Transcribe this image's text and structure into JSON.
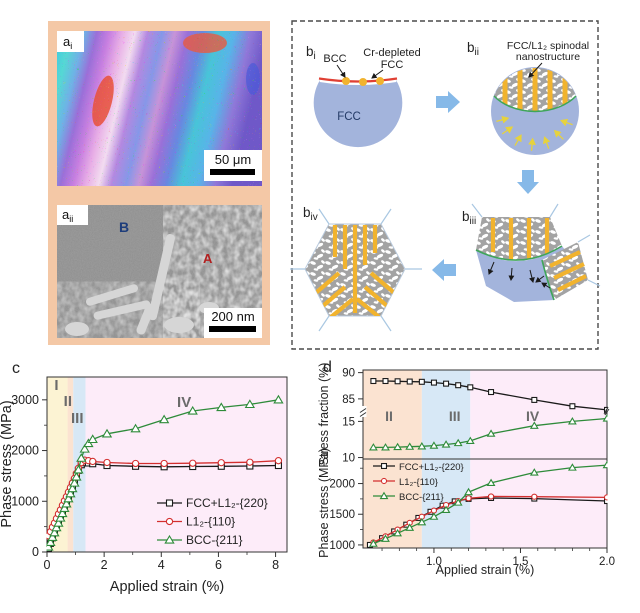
{
  "figure": {
    "panel_a": {
      "frame_color": "#f4c8a6",
      "ai": {
        "label_base": "a",
        "label_sub": "i",
        "scale_label": "50 μm"
      },
      "aii": {
        "label_base": "a",
        "label_sub": "ii",
        "scale_label": "200 nm",
        "marker_b": "B",
        "marker_a": "A",
        "marker_b_color": "#1e3d7b",
        "marker_a_color": "#b22020"
      }
    },
    "panel_b": {
      "bi": {
        "label_base": "b",
        "label_sub": "i",
        "bcc": "BCC",
        "cr_line1": "Cr-depleted",
        "cr_line2": "FCC",
        "fcc": "FCC"
      },
      "bii": {
        "label_base": "b",
        "label_sub": "ii",
        "ann_line1": "FCC/L1₂ spinodal",
        "ann_line2": "nanostructure"
      },
      "biii": {
        "label_base": "b",
        "label_sub": "iii"
      },
      "biv": {
        "label_base": "b",
        "label_sub": "iv"
      },
      "colors": {
        "matrix_blue": "#a3b4dc",
        "bar_yellow": "#f1b32e",
        "interface_green": "#3fa55a",
        "texture_gray": "#a3a3a3",
        "flow_arrow_blue": "#86b9e8",
        "surface_red": "#e04034"
      }
    }
  },
  "chart_data": [
    {
      "id": "c",
      "type": "line",
      "panel_label": "c",
      "xlabel": "Applied strain (%)",
      "ylabel": "Phase stress (MPa)",
      "xlim": [
        0,
        8.4
      ],
      "ylim": [
        0,
        3450
      ],
      "xticks": [
        0,
        2,
        4,
        6,
        8
      ],
      "xtick_labels": [
        "0",
        "2",
        "4",
        "6",
        "8"
      ],
      "yticks": [
        0,
        1000,
        2000,
        3000
      ],
      "ytick_labels": [
        "0",
        "1000",
        "2000",
        "3000"
      ],
      "grid": false,
      "legend": true,
      "legend_position": "inside-right-bottom",
      "regions": [
        {
          "label": "I",
          "from": 0,
          "to": 0.72,
          "color": "#fcf3d3",
          "label_x": 0.33,
          "label_y": 35
        },
        {
          "label": "II",
          "from": 0.72,
          "to": 0.92,
          "color": "#fbe3d1",
          "label_x": 0.73,
          "label_y": 51
        },
        {
          "label": "III",
          "from": 0.92,
          "to": 1.35,
          "color": "#d7e8f6",
          "label_x": 1.06,
          "label_y": 68
        },
        {
          "label": "IV",
          "from": 1.35,
          "to": 8.4,
          "color": "#fdecf9",
          "label_x": 4.8,
          "label_y": 52
        }
      ],
      "series": [
        {
          "name": "FCC+L1₂-{220}",
          "color": "#1a1a1a",
          "marker": "square",
          "x": [
            0.05,
            0.12,
            0.19,
            0.26,
            0.33,
            0.4,
            0.47,
            0.54,
            0.61,
            0.68,
            0.75,
            0.82,
            0.89,
            0.96,
            1.03,
            1.1,
            1.2,
            1.32,
            1.45,
            1.6,
            2.1,
            3.1,
            4.1,
            5.1,
            6.1,
            7.1,
            8.1
          ],
          "y": [
            70,
            170,
            280,
            380,
            480,
            580,
            680,
            790,
            890,
            990,
            1090,
            1190,
            1300,
            1400,
            1510,
            1610,
            1720,
            1760,
            1755,
            1740,
            1705,
            1690,
            1680,
            1685,
            1690,
            1695,
            1705
          ]
        },
        {
          "name": "L1₂-{110}",
          "color": "#d32f2f",
          "marker": "circle",
          "x": [
            0.05,
            0.12,
            0.19,
            0.26,
            0.33,
            0.4,
            0.47,
            0.54,
            0.61,
            0.68,
            0.75,
            0.82,
            0.89,
            0.96,
            1.03,
            1.1,
            1.2,
            1.32,
            1.45,
            1.6,
            2.1,
            3.1,
            4.1,
            5.1,
            6.1,
            7.1,
            8.1
          ],
          "y": [
            320,
            400,
            490,
            570,
            660,
            750,
            830,
            920,
            1010,
            1090,
            1180,
            1270,
            1360,
            1450,
            1550,
            1650,
            1760,
            1810,
            1800,
            1785,
            1765,
            1745,
            1745,
            1750,
            1760,
            1770,
            1800
          ]
        },
        {
          "name": "BCC-{211}",
          "color": "#2e8b3a",
          "marker": "triangle",
          "x": [
            0.05,
            0.12,
            0.19,
            0.26,
            0.33,
            0.4,
            0.47,
            0.54,
            0.61,
            0.68,
            0.75,
            0.82,
            0.89,
            0.96,
            1.03,
            1.1,
            1.2,
            1.32,
            1.45,
            1.6,
            2.1,
            3.1,
            4.1,
            5.1,
            6.1,
            7.1,
            8.1
          ],
          "y": [
            100,
            190,
            290,
            380,
            480,
            570,
            670,
            760,
            860,
            950,
            1050,
            1150,
            1250,
            1360,
            1480,
            1620,
            1850,
            2030,
            2140,
            2220,
            2330,
            2430,
            2610,
            2780,
            2850,
            2910,
            3000
          ]
        }
      ]
    },
    {
      "id": "d_top",
      "type": "line",
      "panel_label": "d",
      "ylabel": "Stress fraction (%)",
      "xlim": [
        0.59,
        2.0
      ],
      "axis_break": true,
      "ylim_upper": [
        82.5,
        90.5
      ],
      "yticks_upper": [
        90,
        85
      ],
      "ylim_lower": [
        9.8,
        16.3
      ],
      "yticks_lower": [
        15,
        10
      ],
      "grid": false,
      "legend": false,
      "regions": [
        {
          "label": "II",
          "from": 0.59,
          "to": 0.93,
          "color": "#fbe3d1",
          "label_x": 0.74,
          "label_y": 66
        },
        {
          "label": "III",
          "from": 0.93,
          "to": 1.21,
          "color": "#d7e8f6",
          "label_x": 1.12,
          "label_y": 66
        },
        {
          "label": "IV",
          "from": 1.21,
          "to": 2.0,
          "color": "#fdecf9",
          "label_x": 1.57,
          "label_y": 66
        }
      ],
      "series": [
        {
          "name": "FCC+L1₂-{220}",
          "color": "#1a1a1a",
          "marker": "square",
          "segment": 0,
          "x": [
            0.65,
            0.72,
            0.79,
            0.86,
            0.93,
            1.0,
            1.07,
            1.14,
            1.21,
            1.33,
            1.58,
            1.8,
            2.0
          ],
          "y": [
            88.4,
            88.4,
            88.35,
            88.3,
            88.25,
            88.1,
            87.9,
            87.6,
            87.2,
            86.3,
            84.8,
            83.6,
            82.9
          ]
        },
        {
          "name": "BCC-{211}",
          "color": "#2e8b3a",
          "marker": "triangle",
          "segment": 1,
          "x": [
            0.65,
            0.72,
            0.79,
            0.86,
            0.93,
            1.0,
            1.07,
            1.14,
            1.21,
            1.33,
            1.58,
            1.8,
            2.0
          ],
          "y": [
            11.4,
            11.4,
            11.45,
            11.5,
            11.55,
            11.65,
            11.8,
            12.0,
            12.3,
            13.3,
            14.4,
            15.0,
            15.4
          ]
        }
      ]
    },
    {
      "id": "d_bottom",
      "type": "line",
      "xlabel": "Applied strain (%)",
      "ylabel": "Phase stress (MPa)",
      "xlim": [
        0.59,
        2.0
      ],
      "ylim": [
        950,
        2400
      ],
      "xticks": [
        1.0,
        1.5,
        2.0
      ],
      "xtick_labels": [
        "1.0",
        "1.5",
        "2.0"
      ],
      "yticks": [
        1000,
        1500,
        2000
      ],
      "ytick_labels": [
        "1000",
        "1500",
        "2000"
      ],
      "grid": false,
      "legend": true,
      "legend_position": "inside-left-top",
      "regions": [
        {
          "from": 0.59,
          "to": 0.93,
          "color": "#fbe3d1"
        },
        {
          "from": 0.93,
          "to": 1.21,
          "color": "#d7e8f6"
        },
        {
          "from": 1.21,
          "to": 2.0,
          "color": "#fdecf9"
        }
      ],
      "series": [
        {
          "name": "FCC+L1₂-{220}",
          "color": "#1a1a1a",
          "marker": "square",
          "x": [
            0.63,
            0.7,
            0.77,
            0.84,
            0.91,
            0.98,
            1.05,
            1.12,
            1.2,
            1.33,
            1.58,
            2.0
          ],
          "y": [
            1000,
            1110,
            1220,
            1330,
            1440,
            1540,
            1640,
            1710,
            1750,
            1765,
            1755,
            1715
          ]
        },
        {
          "name": "L1₂-{110}",
          "color": "#d32f2f",
          "marker": "circle",
          "x": [
            0.65,
            0.72,
            0.79,
            0.86,
            0.93,
            1.0,
            1.07,
            1.14,
            1.2,
            1.33,
            1.58,
            2.0
          ],
          "y": [
            1040,
            1140,
            1250,
            1360,
            1460,
            1560,
            1650,
            1715,
            1760,
            1790,
            1785,
            1775
          ]
        },
        {
          "name": "BCC-{211}",
          "color": "#2e8b3a",
          "marker": "triangle",
          "x": [
            0.65,
            0.72,
            0.79,
            0.86,
            0.93,
            1.0,
            1.07,
            1.14,
            1.2,
            1.33,
            1.58,
            1.8,
            2.0
          ],
          "y": [
            1020,
            1100,
            1190,
            1280,
            1370,
            1460,
            1570,
            1690,
            1860,
            2010,
            2180,
            2260,
            2300
          ]
        }
      ]
    }
  ]
}
